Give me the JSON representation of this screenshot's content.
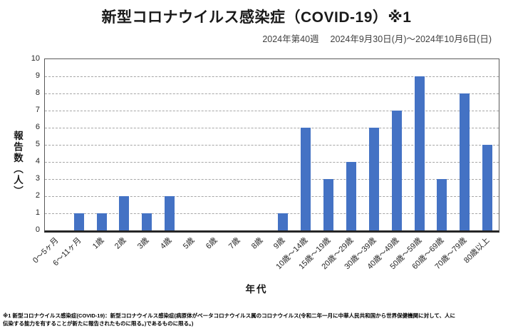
{
  "title": "新型コロナウイルス感染症（COVID-19）※1",
  "subtitle": "2024年第40週　 2024年9月30日(月)～2024年10月6日(日)",
  "chart_data": {
    "type": "bar",
    "title": "新型コロナウイルス感染症（COVID-19）※1",
    "subtitle": "2024年第40週 2024年9月30日(月)～2024年10月6日(日)",
    "categories": [
      "0～5ヶ月",
      "6～11ヶ月",
      "1歳",
      "2歳",
      "3歳",
      "4歳",
      "5歳",
      "6歳",
      "7歳",
      "8歳",
      "9歳",
      "10歳～14歳",
      "15歳～19歳",
      "20歳～29歳",
      "30歳～39歳",
      "40歳～49歳",
      "50歳～59歳",
      "60歳～69歳",
      "70歳～79歳",
      "80歳以上"
    ],
    "values": [
      0,
      1,
      1,
      2,
      1,
      2,
      0,
      0,
      0,
      0,
      1,
      6,
      3,
      4,
      6,
      7,
      9,
      3,
      8,
      5
    ],
    "xlabel": "年代",
    "ylabel": "報告数（人）",
    "ylim": [
      0,
      10
    ],
    "yticks": [
      0,
      1,
      2,
      3,
      4,
      5,
      6,
      7,
      8,
      9,
      10
    ],
    "grid": "horizontal-dashed",
    "legend": "none",
    "bar_color": "#4472C4",
    "axis_color": "#595959",
    "gridline_color": "#a6a6a6"
  },
  "footnote": {
    "line1": "※1 新型コロナウイルス感染症(COVID-19)：新型コロナウイルス感染症(病原体がベータコロナウイルス属のコロナウイルス(令和二年一月に中華人民共和国から世界保健機関に対して、人に",
    "line2": "伝染する能力を有することが新たに報告されたものに限る。)であるものに限る。)"
  }
}
